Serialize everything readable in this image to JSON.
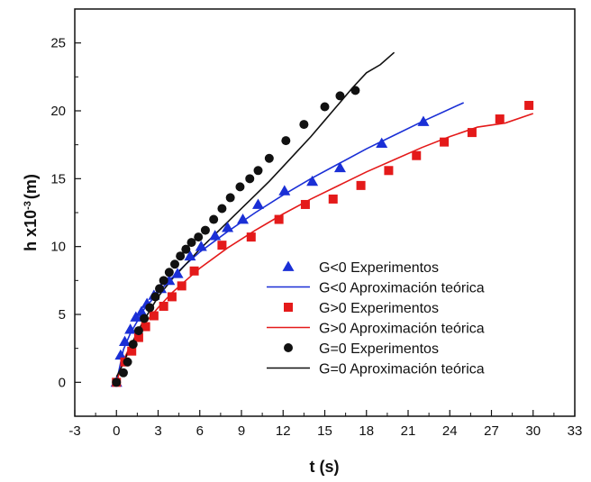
{
  "chart_data": {
    "type": "scatter",
    "title": "",
    "xlabel": "t (s)",
    "ylabel": {
      "prefix": "h x10",
      "superscript": "-3",
      "suffix": "(m)"
    },
    "xlim": [
      -3,
      33
    ],
    "ylim": [
      -2.5,
      27.5
    ],
    "xticks": [
      -3,
      0,
      3,
      6,
      9,
      12,
      15,
      18,
      21,
      24,
      27,
      30,
      33
    ],
    "yticks": [
      0,
      5,
      10,
      15,
      20,
      25
    ],
    "grid": false,
    "legend_position": "lower-right",
    "series": [
      {
        "name": "G<0 Experimentos",
        "kind": "markers",
        "marker": "triangle",
        "color": "#1a2fd6",
        "x": [
          0,
          0.3,
          0.6,
          1.0,
          1.4,
          1.8,
          2.2,
          2.7,
          3.2,
          3.8,
          4.4,
          5.3,
          6.1,
          7.1,
          8.0,
          9.1,
          10.2,
          12.1,
          14.1,
          16.1,
          19.1,
          22.1
        ],
        "y": [
          0,
          2.0,
          3.0,
          3.9,
          4.8,
          5.2,
          5.8,
          6.4,
          6.9,
          7.5,
          8.0,
          9.3,
          10.0,
          10.8,
          11.4,
          12.0,
          13.1,
          14.1,
          14.8,
          15.8,
          17.6,
          19.2
        ]
      },
      {
        "name": "G<0 Aproximación  teórica",
        "kind": "line",
        "color": "#1a2fd6",
        "x": [
          0,
          0.5,
          1,
          2,
          3,
          4,
          5,
          6,
          8,
          10,
          12,
          14,
          16,
          18,
          20,
          22,
          25
        ],
        "y": [
          0,
          2.4,
          3.6,
          5.4,
          6.6,
          7.7,
          8.7,
          9.6,
          11.1,
          12.5,
          13.8,
          15.0,
          16.1,
          17.2,
          18.2,
          19.2,
          20.6
        ]
      },
      {
        "name": "G>0 Experimentos",
        "kind": "markers",
        "marker": "square",
        "color": "#e41a1a",
        "x": [
          0,
          0.6,
          1.1,
          1.6,
          2.1,
          2.7,
          3.4,
          4.0,
          4.7,
          5.6,
          7.6,
          9.7,
          11.7,
          13.6,
          15.6,
          17.6,
          19.6,
          21.6,
          23.6,
          25.6,
          27.6,
          29.7
        ],
        "y": [
          0,
          1.5,
          2.3,
          3.3,
          4.1,
          4.9,
          5.6,
          6.3,
          7.1,
          8.2,
          10.1,
          10.7,
          12.0,
          13.1,
          13.5,
          14.5,
          15.6,
          16.7,
          17.7,
          18.4,
          19.4,
          20.4
        ]
      },
      {
        "name": "G>0 Aproximación  teórica",
        "kind": "line",
        "color": "#e41a1a",
        "x": [
          0,
          0.5,
          1,
          2,
          3,
          4,
          5,
          6,
          8,
          10,
          12,
          14,
          16,
          18,
          20,
          22,
          24,
          26,
          28,
          30
        ],
        "y": [
          0,
          1.6,
          2.7,
          4.3,
          5.5,
          6.6,
          7.5,
          8.4,
          9.9,
          11.2,
          12.4,
          13.5,
          14.5,
          15.5,
          16.4,
          17.3,
          18.1,
          18.8,
          19.1,
          19.8
        ]
      },
      {
        "name": "G=0 Experimentos",
        "kind": "markers",
        "marker": "circle",
        "color": "#111111",
        "x": [
          0,
          0.5,
          0.8,
          1.2,
          1.6,
          2.0,
          2.4,
          2.8,
          3.1,
          3.4,
          3.8,
          4.2,
          4.6,
          5.0,
          5.4,
          5.9,
          6.4,
          7.0,
          7.6,
          8.2,
          8.9,
          9.6,
          10.2,
          11.0,
          12.2,
          13.5,
          15.0,
          16.1,
          17.2
        ],
        "y": [
          0,
          0.7,
          1.5,
          2.8,
          3.8,
          4.7,
          5.5,
          6.3,
          6.9,
          7.5,
          8.1,
          8.7,
          9.3,
          9.8,
          10.3,
          10.7,
          11.2,
          12.0,
          12.8,
          13.6,
          14.4,
          15.0,
          15.6,
          16.5,
          17.8,
          19.0,
          20.3,
          21.1,
          21.5
        ]
      },
      {
        "name": "G=0 Aproximación  teórica",
        "kind": "line",
        "color": "#111111",
        "x": [
          0,
          0.5,
          1,
          1.5,
          2,
          3,
          4,
          5,
          6,
          7,
          8,
          9,
          10,
          11,
          12,
          13,
          14,
          15,
          16,
          17,
          18,
          19,
          20
        ],
        "y": [
          0.4,
          1.4,
          2.6,
          3.7,
          4.6,
          6.3,
          7.6,
          8.7,
          9.8,
          10.8,
          11.8,
          12.8,
          13.8,
          14.8,
          15.9,
          17.0,
          18.1,
          19.3,
          20.5,
          21.7,
          22.8,
          23.4,
          24.3
        ]
      }
    ]
  }
}
